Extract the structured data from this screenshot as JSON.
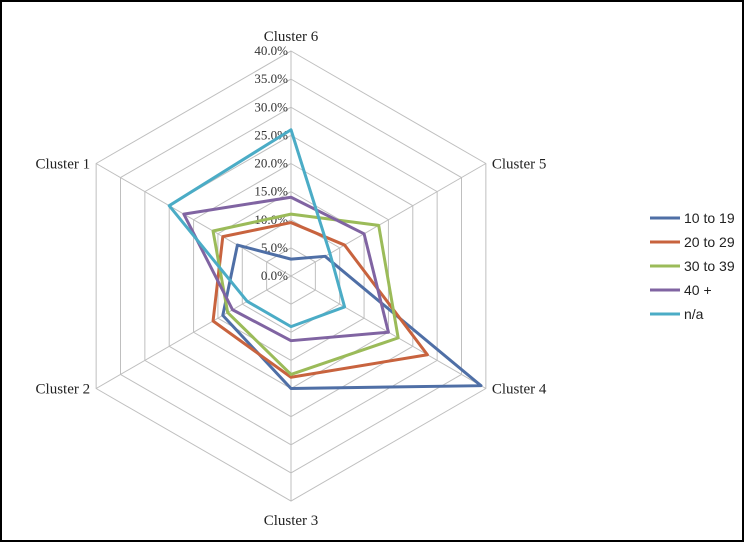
{
  "chart_data": {
    "type": "radar",
    "categories": [
      "Cluster 6",
      "Cluster 5",
      "Cluster 4",
      "Cluster 3",
      "Cluster 2",
      "Cluster 1"
    ],
    "rlim": [
      0,
      40
    ],
    "ticks": [
      "0.0%",
      "5.0%",
      "10.0%",
      "15.0%",
      "20.0%",
      "25.0%",
      "30.0%",
      "35.0%",
      "40.0%"
    ],
    "grid": true,
    "legend_position": "right",
    "series": [
      {
        "name": "10 to 19",
        "color": "#4f6fa6",
        "values": [
          3,
          7,
          39,
          20,
          14,
          11
        ]
      },
      {
        "name": "20 to 29",
        "color": "#c8633e",
        "values": [
          9.5,
          11,
          28,
          18,
          16,
          14
        ]
      },
      {
        "name": "30 to 39",
        "color": "#9bbb59",
        "values": [
          11,
          18,
          22,
          17.5,
          13,
          16
        ]
      },
      {
        "name": "40 +",
        "color": "#8064a2",
        "values": [
          14,
          15,
          20,
          11.5,
          12,
          22
        ]
      },
      {
        "name": "n/a",
        "color": "#4bacc6",
        "values": [
          26,
          8,
          11,
          9,
          9,
          25
        ]
      }
    ]
  }
}
